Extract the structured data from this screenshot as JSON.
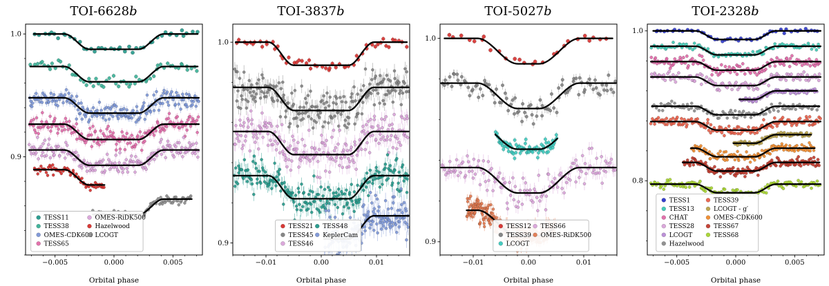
{
  "chart_data": [
    {
      "type": "scatter",
      "title_main": "TOI-6628",
      "title_suffix": "b",
      "xlabel": "Orbital phase",
      "xlim": [
        -0.0075,
        0.0075
      ],
      "xticks": [
        {
          "v": -0.005,
          "label": "−0.005"
        },
        {
          "v": 0,
          "label": "0.000"
        },
        {
          "v": 0.005,
          "label": "0.005"
        }
      ],
      "ylim": [
        0.82,
        1.008
      ],
      "yticks": [
        {
          "v": 1.0,
          "label": "1.0"
        },
        {
          "v": 0.9,
          "label": "0.9"
        }
      ],
      "transit": {
        "t_flat": 0.0021,
        "t_total": 0.0042,
        "depth": 0.0125
      },
      "legend": {
        "ncol": 2,
        "x": 0.03,
        "y": 0.015
      },
      "series": [
        {
          "name": "TESS11",
          "color": "#23988a",
          "offset": 1.0,
          "x_min": -0.0068,
          "x_max": 0.0071,
          "n": 42,
          "noise": 0.0013,
          "err": 0.0012,
          "r": 2.7
        },
        {
          "name": "TESS38",
          "color": "#3ab096",
          "offset": 0.9735,
          "x_min": -0.0071,
          "x_max": 0.0071,
          "n": 62,
          "noise": 0.0022,
          "err": 0.0018,
          "r": 2.5
        },
        {
          "name": "OMES-CDK600",
          "color": "#7b95d6",
          "offset": 0.948,
          "x_min": -0.0072,
          "x_max": 0.0072,
          "n": 200,
          "noise": 0.0042,
          "err": 0.0032,
          "r": 2.1
        },
        {
          "name": "TESS65",
          "color": "#e06aa8",
          "offset": 0.9265,
          "x_min": -0.0072,
          "x_max": 0.0072,
          "n": 185,
          "noise": 0.004,
          "err": 0.003,
          "r": 2.1
        },
        {
          "name": "OMES-RiDK500",
          "color": "#d9a3d9",
          "offset": 0.9055,
          "x_min": -0.0072,
          "x_max": 0.0072,
          "n": 195,
          "noise": 0.0038,
          "err": 0.003,
          "r": 2.1
        },
        {
          "name": "Hazelwood",
          "color": "#d62f2c",
          "offset": 0.8895,
          "x_min": -0.0068,
          "x_max": -0.0008,
          "n": 70,
          "noise": 0.0018,
          "err": 0.0014,
          "r": 2.1
        },
        {
          "name": "LCOGT",
          "color": "#8c8c8c",
          "offset": 0.8655,
          "x_min": -0.0018,
          "x_max": 0.0066,
          "n": 90,
          "noise": 0.002,
          "err": 0.0015,
          "r": 2.1
        }
      ]
    },
    {
      "type": "scatter",
      "title_main": "TOI-3837",
      "title_suffix": "b",
      "xlabel": "Orbital phase",
      "xlim": [
        -0.016,
        0.016
      ],
      "xticks": [
        {
          "v": -0.01,
          "label": "−0.01"
        },
        {
          "v": 0,
          "label": "0.00"
        },
        {
          "v": 0.01,
          "label": "0.01"
        }
      ],
      "ylim": [
        0.894,
        1.009
      ],
      "yticks": [
        {
          "v": 1.0,
          "label": "1.0"
        },
        {
          "v": 0.9,
          "label": "0.9"
        }
      ],
      "transit": {
        "t_flat": 0.005,
        "t_total": 0.0095,
        "depth": 0.0115
      },
      "legend": {
        "ncol": 2,
        "x": 0.24,
        "y": 0.015
      },
      "series": [
        {
          "name": "TESS21",
          "color": "#d62f2c",
          "offset": 1.0,
          "x_min": -0.0155,
          "x_max": 0.0155,
          "n": 55,
          "noise": 0.0014,
          "err": 0.0013,
          "r": 2.5
        },
        {
          "name": "TESS45",
          "color": "#808080",
          "offset": 0.9775,
          "x_min": -0.0158,
          "x_max": 0.0158,
          "n": 225,
          "noise": 0.0045,
          "err": 0.0035,
          "r": 2.1
        },
        {
          "name": "TESS46",
          "color": "#d9a3d9",
          "offset": 0.9555,
          "x_min": -0.0158,
          "x_max": 0.0158,
          "n": 225,
          "noise": 0.0045,
          "err": 0.0035,
          "r": 2.1
        },
        {
          "name": "TESS48",
          "color": "#23988a",
          "offset": 0.9335,
          "x_min": -0.0158,
          "x_max": 0.0158,
          "n": 225,
          "noise": 0.0042,
          "err": 0.0033,
          "r": 2.1
        },
        {
          "name": "KeplerCam",
          "color": "#7b95d6",
          "offset": 0.9135,
          "x_min": 0.0005,
          "x_max": 0.0158,
          "n": 155,
          "noise": 0.0052,
          "err": 0.004,
          "r": 2.1
        }
      ]
    },
    {
      "type": "scatter",
      "title_main": "TOI-5027",
      "title_suffix": "b",
      "xlabel": "Orbital phase",
      "xlim": [
        -0.016,
        0.016
      ],
      "xticks": [
        {
          "v": -0.01,
          "label": "−0.01"
        },
        {
          "v": 0,
          "label": "0.00"
        },
        {
          "v": 0.01,
          "label": "0.01"
        }
      ],
      "ylim": [
        0.8935,
        1.007
      ],
      "yticks": [
        {
          "v": 1.0,
          "label": "1.0"
        },
        {
          "v": 0.9,
          "label": "0.9"
        }
      ],
      "transit": {
        "t_flat": 0.002,
        "t_total": 0.0092,
        "depth": 0.0125
      },
      "legend": {
        "ncol": 2,
        "x": 0.3,
        "y": 0.015
      },
      "series": [
        {
          "name": "TESS12",
          "color": "#d62f2c",
          "offset": 1.0,
          "x_min": -0.0152,
          "x_max": 0.0152,
          "n": 26,
          "noise": 0.0012,
          "err": 0.0011,
          "r": 2.7
        },
        {
          "name": "TESS39",
          "color": "#808080",
          "offset": 0.978,
          "x_min": -0.0158,
          "x_max": 0.0158,
          "n": 95,
          "noise": 0.0028,
          "err": 0.0022,
          "r": 2.3
        },
        {
          "name": "LCOGT",
          "color": "#3cc8bd",
          "offset": 0.958,
          "x_min": -0.006,
          "x_max": 0.0052,
          "n": 80,
          "noise": 0.0018,
          "err": 0.0014,
          "r": 2.3
        },
        {
          "name": "TESS66",
          "color": "#d9a3d9",
          "offset": 0.9365,
          "x_min": -0.0158,
          "x_max": 0.0158,
          "n": 140,
          "noise": 0.0042,
          "err": 0.0032,
          "r": 2.1
        },
        {
          "name": "OMES-RiDK500",
          "color": "#e2794f",
          "offset": 0.9155,
          "x_min": -0.0112,
          "x_max": 0.0048,
          "n": 255,
          "noise": 0.0028,
          "err": 0.0022,
          "r": 2.0
        }
      ]
    },
    {
      "type": "scatter",
      "title_main": "TOI-2328",
      "title_suffix": "b",
      "xlabel": "Orbital phase",
      "xlim": [
        -0.0075,
        0.0075
      ],
      "xticks": [
        {
          "v": -0.005,
          "label": "−0.005"
        },
        {
          "v": 0,
          "label": "0.000"
        },
        {
          "v": 0.005,
          "label": "0.005"
        }
      ],
      "ylim": [
        0.701,
        1.009
      ],
      "yticks": [
        {
          "v": 1.0,
          "label": "1.0"
        },
        {
          "v": 0.8,
          "label": "0.8"
        }
      ],
      "transit": {
        "t_flat": 0.0016,
        "t_total": 0.0034,
        "depth": 0.0115
      },
      "legend": {
        "ncol": 2,
        "x": 0.05,
        "y": 0.015
      },
      "series": [
        {
          "name": "TESS1",
          "color": "#2b35c9",
          "offset": 1.0,
          "x_min": -0.007,
          "x_max": 0.0072,
          "n": 48,
          "noise": 0.0012,
          "err": 0.001,
          "r": 2.5
        },
        {
          "name": "TESS13",
          "color": "#3cc8b4",
          "offset": 0.9795,
          "x_min": -0.0072,
          "x_max": 0.0072,
          "n": 100,
          "noise": 0.0022,
          "err": 0.0018,
          "r": 2.2
        },
        {
          "name": "CHAT",
          "color": "#e06aa8",
          "offset": 0.959,
          "x_min": -0.0072,
          "x_max": 0.0072,
          "n": 150,
          "noise": 0.0035,
          "err": 0.0025,
          "r": 2.2
        },
        {
          "name": "TESS28",
          "color": "#d9a3d9",
          "offset": 0.9385,
          "x_min": -0.0072,
          "x_max": 0.0072,
          "n": 120,
          "noise": 0.0032,
          "err": 0.0025,
          "r": 2.2
        },
        {
          "name": "LCOGT",
          "color": "#b88bd6",
          "offset": 0.92,
          "x_min": 0.0003,
          "x_max": 0.0069,
          "n": 70,
          "noise": 0.0018,
          "err": 0.0015,
          "r": 2.1
        },
        {
          "name": "Hazelwood",
          "color": "#8c8c8c",
          "offset": 0.8995,
          "x_min": -0.0071,
          "x_max": 0.0071,
          "n": 110,
          "noise": 0.0028,
          "err": 0.002,
          "r": 2.1
        },
        {
          "name": "TESS39",
          "color": "#e8604a",
          "offset": 0.879,
          "x_min": -0.0072,
          "x_max": 0.0072,
          "n": 170,
          "noise": 0.0035,
          "err": 0.0025,
          "r": 2.2
        },
        {
          "name": "LCOGT - g′",
          "color": "#b8a24a",
          "offset": 0.8615,
          "x_min": -0.0002,
          "x_max": 0.0064,
          "n": 80,
          "noise": 0.0018,
          "err": 0.0015,
          "r": 2.1
        },
        {
          "name": "OMES-CDK600",
          "color": "#ef8b2d",
          "offset": 0.8435,
          "x_min": -0.0038,
          "x_max": 0.0067,
          "n": 140,
          "noise": 0.0028,
          "err": 0.002,
          "r": 2.1
        },
        {
          "name": "TESS67",
          "color": "#c23b2e",
          "offset": 0.8245,
          "x_min": -0.0045,
          "x_max": 0.0071,
          "n": 160,
          "noise": 0.003,
          "err": 0.0022,
          "r": 2.2
        },
        {
          "name": "TESS68",
          "color": "#a6d42f",
          "offset": 0.7955,
          "x_min": -0.0072,
          "x_max": 0.0072,
          "n": 130,
          "noise": 0.0025,
          "err": 0.002,
          "r": 2.2
        }
      ]
    }
  ]
}
